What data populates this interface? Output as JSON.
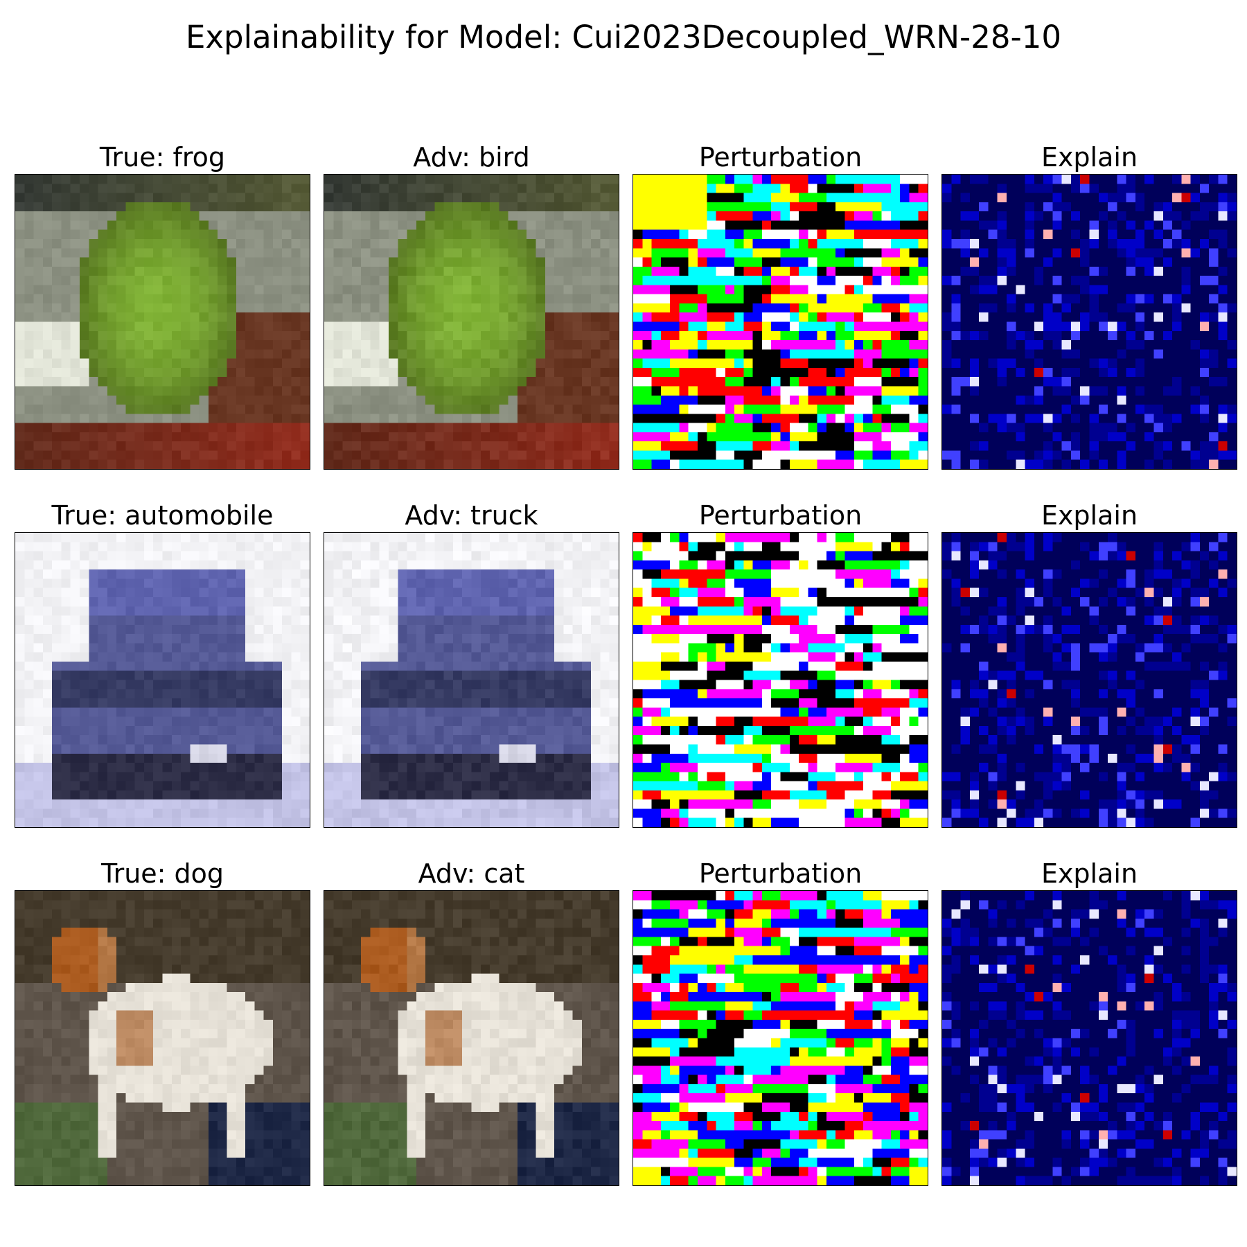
{
  "figure": {
    "title": "Explainability for Model: Cui2023Decoupled_WRN-28-10"
  },
  "rows": [
    {
      "true_label": "True: frog",
      "adv_label": "Adv: bird",
      "perturbation_label": "Perturbation",
      "explain_label": "Explain",
      "original_image": "blurry green frog on grey stones and brown wood",
      "adversarial_image": "same frog image, visually unchanged",
      "perturbation_map": "sign-colored pixel grid: yellow, green, blue, magenta, black, white, cyan",
      "explain_map": "dark navy heatmap with sparse blue and red hotspots"
    },
    {
      "true_label": "True: automobile",
      "adv_label": "Adv: truck",
      "perturbation_label": "Perturbation",
      "explain_label": "Explain",
      "original_image": "front view of a dark blue car on a white/lavender background",
      "adversarial_image": "same car image, visually unchanged",
      "perturbation_map": "mostly white with black outline strokes and scattered colored pixels",
      "explain_map": "dark navy heatmap with scattered blue and red pixels"
    },
    {
      "true_label": "True: dog",
      "adv_label": "Adv: cat",
      "perturbation_label": "Perturbation",
      "explain_label": "Explain",
      "original_image": "white and brown dog standing, side view, dark background",
      "adversarial_image": "same dog image, visually unchanged",
      "perturbation_map": "dense pattern of red, black, white, cyan, magenta and yellow pixels",
      "explain_map": "dark navy heatmap with blue band and red hotspots"
    }
  ]
}
